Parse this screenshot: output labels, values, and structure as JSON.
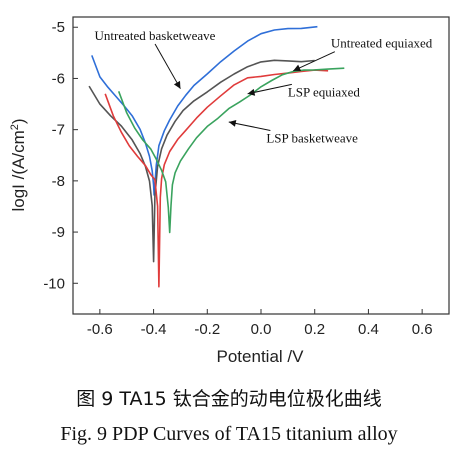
{
  "chart_data": {
    "type": "line",
    "title": "",
    "xlabel": "Potential /V",
    "ylabel": "logI /(A/cm²)",
    "ylabel_base": "logI /(A/cm",
    "ylabel_sup": "2",
    "ylabel_end": ")",
    "xlim": [
      -0.7,
      0.7
    ],
    "ylim": [
      -10.6,
      -4.8
    ],
    "x_ticks": [
      "-0.6",
      "-0.4",
      "-0.2",
      "0.0",
      "0.2",
      "0.4",
      "0.6"
    ],
    "y_ticks": [
      "-5",
      "-6",
      "-7",
      "-8",
      "-9",
      "-10"
    ],
    "grid": false,
    "series": [
      {
        "name": "Untreated basketweave",
        "color": "#2f6fd8",
        "x": [
          -0.63,
          -0.6,
          -0.57,
          -0.54,
          -0.51,
          -0.48,
          -0.45,
          -0.43,
          -0.415,
          -0.405,
          -0.4,
          -0.398,
          -0.39,
          -0.38,
          -0.36,
          -0.34,
          -0.31,
          -0.28,
          -0.25,
          -0.2,
          -0.15,
          -0.1,
          -0.05,
          0.0,
          0.05,
          0.1,
          0.15,
          0.21
        ],
        "y": [
          -5.55,
          -5.95,
          -6.15,
          -6.35,
          -6.55,
          -6.75,
          -7.0,
          -7.25,
          -7.5,
          -7.8,
          -8.1,
          -8.3,
          -7.7,
          -7.3,
          -7.0,
          -6.8,
          -6.55,
          -6.35,
          -6.15,
          -5.9,
          -5.65,
          -5.45,
          -5.28,
          -5.15,
          -5.07,
          -5.02,
          -5.0,
          -4.99
        ]
      },
      {
        "name": "Untreated equiaxed",
        "color": "#555555",
        "x": [
          -0.64,
          -0.6,
          -0.56,
          -0.52,
          -0.48,
          -0.45,
          -0.43,
          -0.415,
          -0.405,
          -0.4,
          -0.395,
          -0.385,
          -0.37,
          -0.35,
          -0.32,
          -0.29,
          -0.25,
          -0.2,
          -0.15,
          -0.1,
          -0.05,
          0.0,
          0.05,
          0.1,
          0.15,
          0.2
        ],
        "y": [
          -6.15,
          -6.5,
          -6.75,
          -6.95,
          -7.2,
          -7.45,
          -7.7,
          -8.0,
          -8.5,
          -9.6,
          -8.3,
          -7.7,
          -7.35,
          -7.1,
          -6.85,
          -6.65,
          -6.45,
          -6.25,
          -6.05,
          -5.9,
          -5.78,
          -5.7,
          -5.66,
          -5.65,
          -5.65,
          -5.65
        ]
      },
      {
        "name": "LSP equiaxed",
        "color": "#e03b3b",
        "x": [
          -0.58,
          -0.55,
          -0.52,
          -0.49,
          -0.46,
          -0.43,
          -0.41,
          -0.395,
          -0.385,
          -0.38,
          -0.375,
          -0.37,
          -0.36,
          -0.34,
          -0.31,
          -0.28,
          -0.24,
          -0.2,
          -0.15,
          -0.1,
          -0.05,
          0.0,
          0.05,
          0.1,
          0.15,
          0.2,
          0.25
        ],
        "y": [
          -6.3,
          -6.75,
          -7.05,
          -7.3,
          -7.5,
          -7.7,
          -7.9,
          -8.0,
          -8.5,
          -10.05,
          -8.3,
          -7.95,
          -7.7,
          -7.45,
          -7.2,
          -7.0,
          -6.75,
          -6.55,
          -6.35,
          -6.15,
          -6.0,
          -5.95,
          -5.9,
          -5.88,
          -5.87,
          -5.86,
          -5.85
        ]
      },
      {
        "name": "LSP basketweave",
        "color": "#3aa35e",
        "x": [
          -0.53,
          -0.5,
          -0.47,
          -0.44,
          -0.41,
          -0.39,
          -0.37,
          -0.355,
          -0.345,
          -0.34,
          -0.335,
          -0.33,
          -0.32,
          -0.3,
          -0.27,
          -0.24,
          -0.2,
          -0.16,
          -0.12,
          -0.08,
          -0.04,
          0.0,
          0.04,
          0.08,
          0.12,
          0.16,
          0.2,
          0.25,
          0.31
        ],
        "y": [
          -6.25,
          -6.65,
          -6.95,
          -7.2,
          -7.4,
          -7.6,
          -7.8,
          -8.0,
          -8.5,
          -9.0,
          -8.5,
          -8.1,
          -7.85,
          -7.6,
          -7.35,
          -7.15,
          -6.95,
          -6.8,
          -6.6,
          -6.45,
          -6.3,
          -6.15,
          -6.05,
          -5.95,
          -5.88,
          -5.83,
          -5.81,
          -5.8,
          -5.8
        ]
      }
    ],
    "annotations": [
      {
        "text": "Untreated basketweave",
        "x": -0.62,
        "y": -5.25,
        "arrow_to": [
          -0.3,
          -6.2
        ]
      },
      {
        "text": "Untreated equiaxed",
        "x": 0.26,
        "y": -5.4,
        "arrow_to": [
          0.12,
          -5.85
        ]
      },
      {
        "text": "LSP equiaxed",
        "x": 0.1,
        "y": -6.35,
        "arrow_to": [
          -0.05,
          -6.3
        ]
      },
      {
        "text": "LSP basketweave",
        "x": 0.02,
        "y": -7.25,
        "arrow_to": [
          -0.12,
          -6.85
        ]
      }
    ]
  },
  "captions": {
    "cn": "图 9 TA15 钛合金的动电位极化曲线",
    "en": "Fig. 9 PDP Curves of TA15 titanium alloy"
  }
}
